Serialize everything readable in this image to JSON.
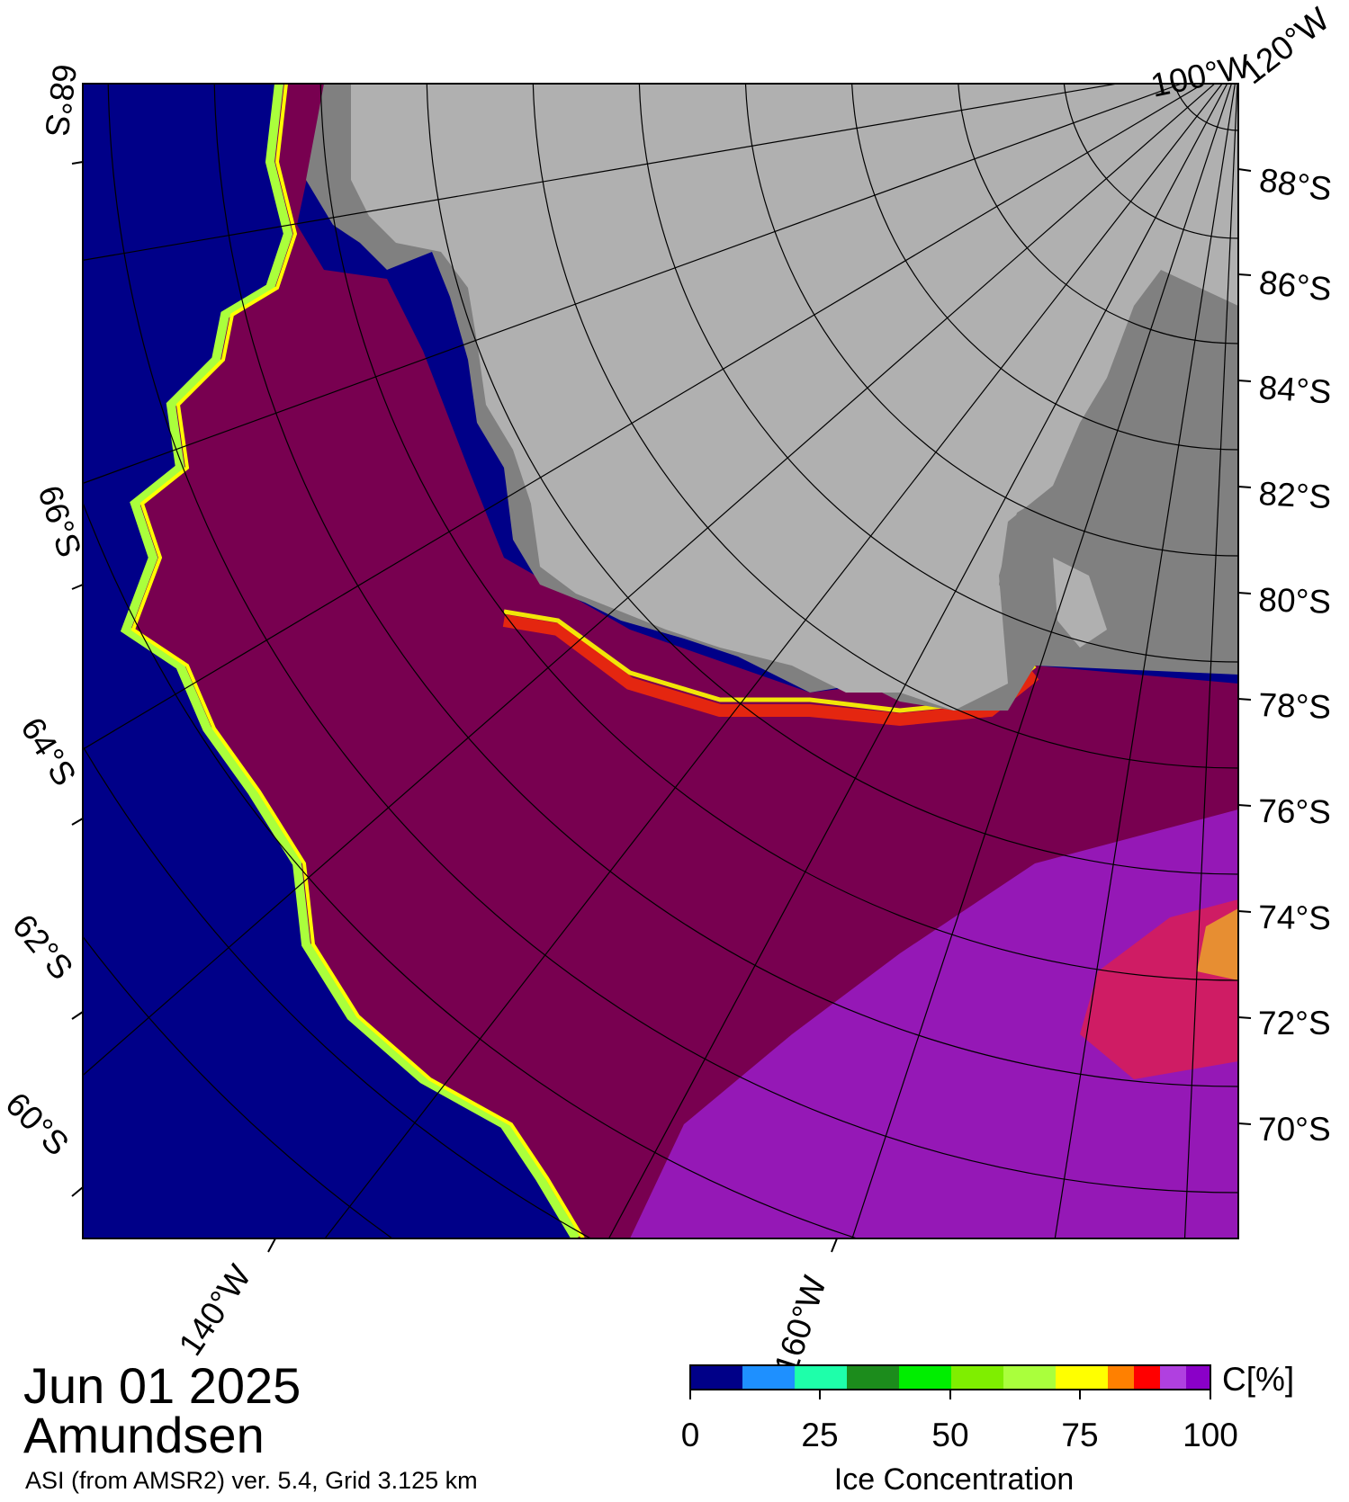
{
  "date": "Jun 01 2025",
  "region": "Amundsen",
  "product_note": "ASI (from AMSR2) ver. 5.4,  Grid 3.125 km",
  "lat_labels_right": [
    "88°S",
    "86°S",
    "84°S",
    "82°S",
    "80°S",
    "78°S",
    "76°S",
    "74°S",
    "72°S",
    "70°S"
  ],
  "lat_labels_left": [
    "68°S",
    "66°S",
    "64°S",
    "62°S",
    "60°S"
  ],
  "lon_labels_top": [
    "100°W",
    "120°W"
  ],
  "lon_labels_bottom": [
    "140°W",
    "160°W"
  ],
  "colorbar": {
    "unit": "C[%]",
    "title": "Ice Concentration",
    "ticks": [
      "0",
      "25",
      "50",
      "75",
      "100"
    ],
    "colors": [
      "#000088",
      "#1e90ff",
      "#1effaa",
      "#1c8c1c",
      "#00ee00",
      "#7fee00",
      "#aaff3c",
      "#ffff00",
      "#ff8000",
      "#ff0000",
      "#b040e0",
      "#8a00c8"
    ]
  },
  "map_colors": {
    "open_water": "#000088",
    "ice_100": "#780050",
    "ice_mid": "#9a1cc8",
    "land_light": "#b0b0b0",
    "land_dark": "#808080"
  }
}
